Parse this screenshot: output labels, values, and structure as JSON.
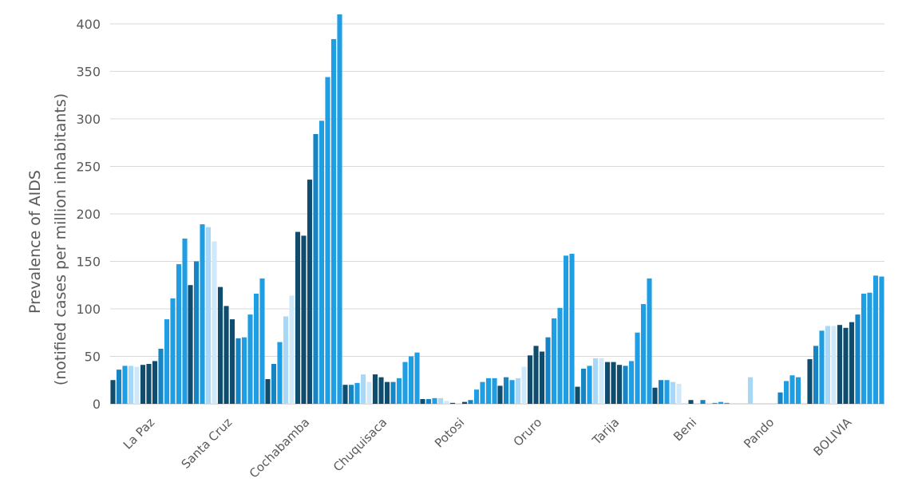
{
  "chart_data": {
    "type": "bar",
    "title": "",
    "xlabel": "",
    "ylabel_lines": [
      "Prevalence of AIDS",
      "(notified cases per million inhabitants)"
    ],
    "ylim": [
      0,
      410
    ],
    "yticks": [
      0,
      50,
      100,
      150,
      200,
      250,
      300,
      350,
      400
    ],
    "grid": true,
    "legend": "none",
    "bar_colors": [
      "#0f4c6e",
      "#1784c4",
      "#1f9ee3",
      "#a8d8f5",
      "#cfe9fa",
      "#0f4c6e",
      "#0f4c6e",
      "#0f4c6e",
      "#1784c4",
      "#1f9ee3",
      "#1f9ee3",
      "#1f9ee3",
      "#1f9ee3"
    ],
    "categories": [
      "La Paz",
      "Santa Cruz",
      "Cochabamba",
      "Chuquisaca",
      "Potosi",
      "Oruro",
      "Tarija",
      "Beni",
      "Pando",
      "BOLIVIA"
    ],
    "series": [
      {
        "values": [
          25,
          125,
          26,
          20,
          5,
          19,
          18,
          17,
          0,
          47
        ]
      },
      {
        "values": [
          36,
          150,
          42,
          20,
          5,
          28,
          37,
          25,
          0,
          61
        ]
      },
      {
        "values": [
          40,
          189,
          65,
          22,
          6,
          25,
          40,
          25,
          0,
          77
        ]
      },
      {
        "values": [
          40,
          186,
          92,
          31,
          6,
          27,
          48,
          23,
          28,
          82
        ]
      },
      {
        "values": [
          39,
          171,
          114,
          23,
          3,
          39,
          48,
          21,
          0,
          82
        ]
      },
      {
        "values": [
          41,
          123,
          181,
          31,
          1,
          51,
          44,
          0,
          0,
          83
        ]
      },
      {
        "values": [
          42,
          103,
          177,
          28,
          0,
          61,
          44,
          4,
          0,
          80
        ]
      },
      {
        "values": [
          45,
          89,
          236,
          23,
          2,
          55,
          41,
          0,
          0,
          86
        ]
      },
      {
        "values": [
          58,
          69,
          284,
          23,
          4,
          70,
          40,
          4,
          12,
          94
        ]
      },
      {
        "values": [
          89,
          70,
          298,
          27,
          15,
          90,
          45,
          0,
          24,
          116
        ]
      },
      {
        "values": [
          111,
          94,
          344,
          44,
          23,
          101,
          75,
          1,
          30,
          117
        ]
      },
      {
        "values": [
          147,
          116,
          384,
          50,
          27,
          156,
          105,
          2,
          28,
          135
        ]
      },
      {
        "values": [
          174,
          132,
          410,
          54,
          27,
          158,
          132,
          1,
          0,
          134
        ]
      }
    ]
  }
}
